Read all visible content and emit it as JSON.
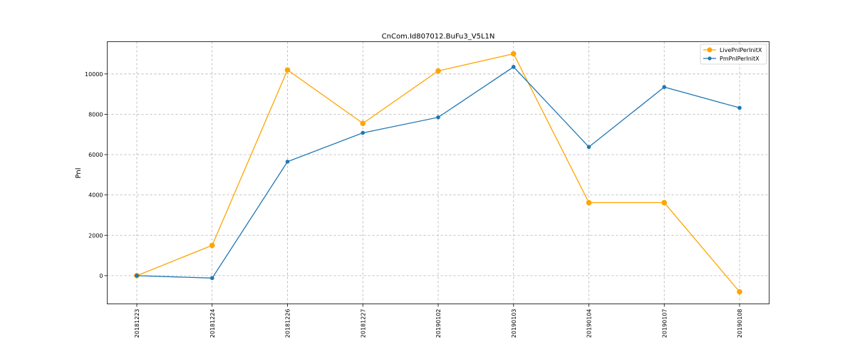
{
  "chart_data": {
    "type": "line",
    "title": "CnCom.Id807012.BuFu3_V5L1N",
    "xlabel": "",
    "ylabel": "Pnl",
    "categories": [
      "20181223",
      "20181224",
      "20181226",
      "20181227",
      "20190102",
      "20190103",
      "20190104",
      "20190107",
      "20190108"
    ],
    "yticks": [
      0,
      2000,
      4000,
      6000,
      8000,
      10000
    ],
    "ylim": [
      -1400,
      11600
    ],
    "grid": true,
    "legend_position": "top-right",
    "series": [
      {
        "name": "LivePnlPerInitX",
        "color": "#FFA500",
        "values": [
          0,
          1500,
          10200,
          7550,
          10150,
          11000,
          3620,
          3620,
          -800
        ]
      },
      {
        "name": "PmPnlPerInitX",
        "color": "#1F77B4",
        "values": [
          0,
          -120,
          5650,
          7080,
          7850,
          10350,
          6380,
          9350,
          8320
        ]
      }
    ]
  }
}
